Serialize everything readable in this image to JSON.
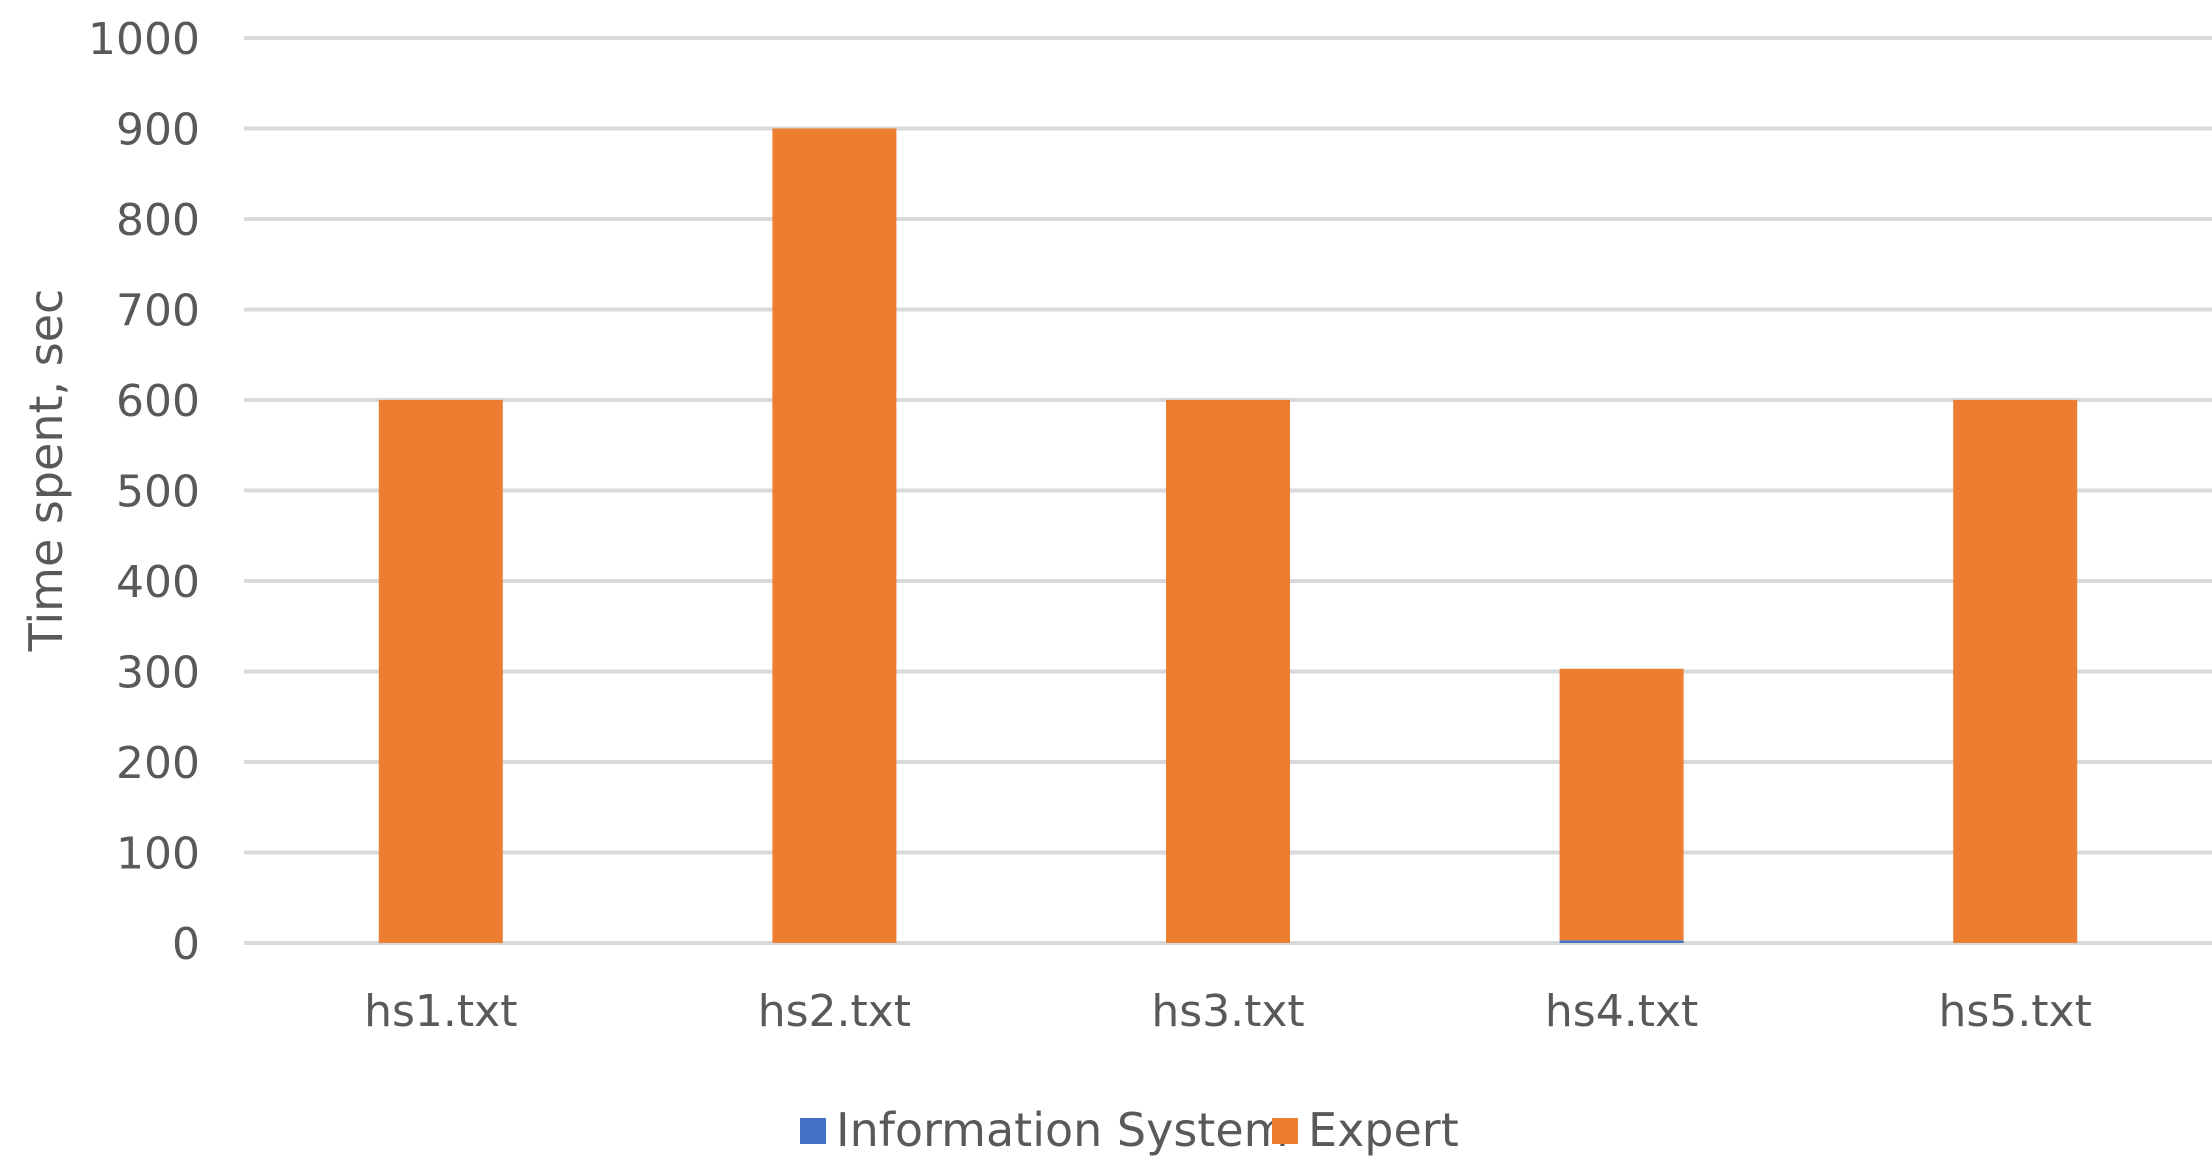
{
  "chart_data": {
    "type": "bar",
    "stacked": true,
    "categories": [
      "hs1.txt",
      "hs2.txt",
      "hs3.txt",
      "hs4.txt",
      "hs5.txt"
    ],
    "series": [
      {
        "name": "Information System",
        "values": [
          0.1,
          0.1,
          0.1,
          3,
          0.1
        ],
        "color": "#4472c4"
      },
      {
        "name": "Expert",
        "values": [
          600,
          900,
          600,
          300,
          600
        ],
        "color": "#ed7d31"
      }
    ],
    "title": "",
    "xlabel": "",
    "ylabel": "Time spent, sec",
    "ylim": [
      0,
      1000
    ],
    "yticks": [
      "0",
      "100",
      "200",
      "300",
      "400",
      "500",
      "600",
      "700",
      "800",
      "900",
      "1000"
    ],
    "grid": true,
    "legend_position": "bottom"
  }
}
